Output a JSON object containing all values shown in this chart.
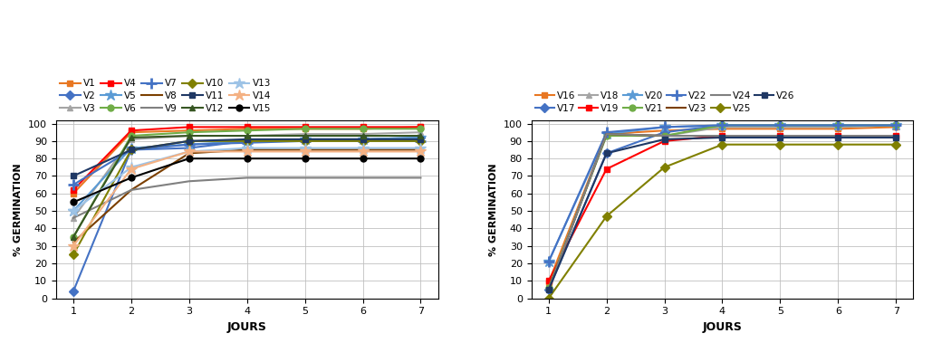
{
  "days": [
    1,
    2,
    3,
    4,
    5,
    6,
    7
  ],
  "left_series": {
    "V1": [
      60,
      95,
      96,
      97,
      97,
      97,
      98
    ],
    "V2": [
      4,
      85,
      86,
      90,
      91,
      91,
      92
    ],
    "V3": [
      46,
      91,
      93,
      93,
      94,
      94,
      95
    ],
    "V4": [
      62,
      96,
      98,
      98,
      98,
      98,
      98
    ],
    "V5": [
      50,
      86,
      88,
      90,
      91,
      91,
      92
    ],
    "V6": [
      35,
      93,
      95,
      96,
      97,
      97,
      97
    ],
    "V7": [
      65,
      85,
      88,
      89,
      90,
      90,
      90
    ],
    "V8": [
      32,
      62,
      83,
      85,
      85,
      85,
      85
    ],
    "V9": [
      46,
      62,
      67,
      69,
      69,
      69,
      69
    ],
    "V10": [
      25,
      85,
      90,
      90,
      90,
      90,
      90
    ],
    "V11": [
      70,
      85,
      90,
      91,
      91,
      91,
      91
    ],
    "V12": [
      35,
      92,
      93,
      93,
      93,
      93,
      93
    ],
    "V13": [
      50,
      75,
      84,
      86,
      86,
      86,
      86
    ],
    "V14": [
      30,
      74,
      84,
      84,
      84,
      84,
      84
    ],
    "V15": [
      55,
      69,
      80,
      80,
      80,
      80,
      80
    ]
  },
  "left_styles": {
    "V1": {
      "color": "#E87722",
      "marker": "s"
    },
    "V2": {
      "color": "#4472C4",
      "marker": "D"
    },
    "V3": {
      "color": "#A5A5A5",
      "marker": "^"
    },
    "V4": {
      "color": "#FF0000",
      "marker": "s"
    },
    "V5": {
      "color": "#5B9BD5",
      "marker": "*"
    },
    "V6": {
      "color": "#70AD47",
      "marker": "o"
    },
    "V7": {
      "color": "#4472C4",
      "marker": "+"
    },
    "V8": {
      "color": "#7B3F00",
      "marker": "None"
    },
    "V9": {
      "color": "#808080",
      "marker": "None"
    },
    "V10": {
      "color": "#808000",
      "marker": "D"
    },
    "V11": {
      "color": "#1F3864",
      "marker": "s"
    },
    "V12": {
      "color": "#375623",
      "marker": "^"
    },
    "V13": {
      "color": "#9DC3E6",
      "marker": "*"
    },
    "V14": {
      "color": "#F4B183",
      "marker": "*"
    },
    "V15": {
      "color": "#000000",
      "marker": "o"
    }
  },
  "right_series": {
    "V16": [
      9,
      94,
      96,
      97,
      97,
      97,
      98
    ],
    "V17": [
      5,
      83,
      95,
      99,
      99,
      99,
      99
    ],
    "V18": [
      6,
      94,
      93,
      98,
      98,
      98,
      99
    ],
    "V19": [
      10,
      74,
      90,
      93,
      93,
      93,
      93
    ],
    "V20": [
      21,
      94,
      98,
      99,
      99,
      99,
      99
    ],
    "V21": [
      6,
      93,
      93,
      99,
      99,
      99,
      99
    ],
    "V22": [
      21,
      95,
      98,
      99,
      99,
      99,
      99
    ],
    "V23": [
      5,
      94,
      93,
      93,
      93,
      93,
      93
    ],
    "V24": [
      5,
      94,
      93,
      93,
      93,
      93,
      93
    ],
    "V25": [
      0,
      47,
      75,
      88,
      88,
      88,
      88
    ],
    "V26": [
      5,
      83,
      91,
      92,
      92,
      92,
      92
    ]
  },
  "right_styles": {
    "V16": {
      "color": "#E87722",
      "marker": "s"
    },
    "V17": {
      "color": "#4472C4",
      "marker": "D"
    },
    "V18": {
      "color": "#A5A5A5",
      "marker": "^"
    },
    "V19": {
      "color": "#FF0000",
      "marker": "s"
    },
    "V20": {
      "color": "#5B9BD5",
      "marker": "*"
    },
    "V21": {
      "color": "#70AD47",
      "marker": "o"
    },
    "V22": {
      "color": "#4472C4",
      "marker": "+"
    },
    "V23": {
      "color": "#7B3F00",
      "marker": "None"
    },
    "V24": {
      "color": "#808080",
      "marker": "None"
    },
    "V25": {
      "color": "#808000",
      "marker": "D"
    },
    "V26": {
      "color": "#1F3864",
      "marker": "s"
    }
  },
  "ylabel": "% GERMINATION",
  "xlabel": "JOURS",
  "yticks": [
    0,
    10,
    20,
    30,
    40,
    50,
    60,
    70,
    80,
    90,
    100
  ],
  "xticks": [
    1,
    2,
    3,
    4,
    5,
    6,
    7
  ]
}
